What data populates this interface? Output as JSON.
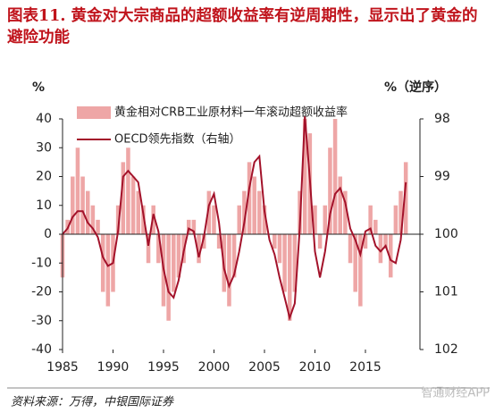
{
  "chart_data": {
    "type": "bar-line",
    "title": "图表11. 黄金对大宗商品的超额收益率有逆周期性，显示出了黄金的避险功能",
    "y_label": "%",
    "y2_label": "%（逆序）",
    "source": "资料来源：万得，中银国际证券",
    "watermark": "智通财经APP",
    "x": [
      1985,
      1985.5,
      1986,
      1986.5,
      1987,
      1987.5,
      1988,
      1988.5,
      1989,
      1989.5,
      1990,
      1990.5,
      1991,
      1991.5,
      1992,
      1992.5,
      1993,
      1993.5,
      1994,
      1994.5,
      1995,
      1995.5,
      1996,
      1996.5,
      1997,
      1997.5,
      1998,
      1998.5,
      1999,
      1999.5,
      2000,
      2000.5,
      2001,
      2001.5,
      2002,
      2002.5,
      2003,
      2003.5,
      2004,
      2004.5,
      2005,
      2005.5,
      2006,
      2006.5,
      2007,
      2007.5,
      2008,
      2008.5,
      2009,
      2009.5,
      2010,
      2010.5,
      2011,
      2011.5,
      2012,
      2012.5,
      2013,
      2013.5,
      2014,
      2014.5,
      2015,
      2015.5,
      2016,
      2016.5,
      2017,
      2017.5,
      2018,
      2018.5,
      2019
    ],
    "series": [
      {
        "name": "黄金相对CRB工业原材料一年滚动超额收益率",
        "kind": "bar",
        "color": "#eea6a6",
        "values": [
          -15,
          5,
          20,
          30,
          20,
          15,
          10,
          5,
          -20,
          -25,
          -20,
          10,
          25,
          30,
          20,
          15,
          10,
          -10,
          10,
          -10,
          -25,
          -30,
          -20,
          -15,
          -10,
          5,
          5,
          -10,
          -5,
          15,
          10,
          -5,
          -20,
          -25,
          -15,
          10,
          15,
          25,
          20,
          15,
          10,
          0,
          -5,
          -10,
          -20,
          -30,
          -20,
          15,
          40,
          35,
          10,
          -5,
          10,
          30,
          40,
          20,
          15,
          -10,
          -20,
          -25,
          -5,
          10,
          5,
          -10,
          -5,
          -15,
          10,
          15,
          25
        ]
      },
      {
        "name": "OECD领先指数（右轴）",
        "kind": "line",
        "axis": "y2",
        "color": "#a3122a",
        "values": [
          100.0,
          99.9,
          99.7,
          99.6,
          99.6,
          99.8,
          99.9,
          100.05,
          100.4,
          100.55,
          100.5,
          99.95,
          99.0,
          98.9,
          99.0,
          99.1,
          99.65,
          100.2,
          99.65,
          99.95,
          100.6,
          101.0,
          101.1,
          100.8,
          100.3,
          99.9,
          99.95,
          100.4,
          100.05,
          99.5,
          99.3,
          99.8,
          100.6,
          100.9,
          100.7,
          100.3,
          99.8,
          99.2,
          98.75,
          98.65,
          99.6,
          100.1,
          100.35,
          100.75,
          101.1,
          101.45,
          101.2,
          99.9,
          97.95,
          99.05,
          100.3,
          100.75,
          100.3,
          99.65,
          99.3,
          99.2,
          99.45,
          99.9,
          100.1,
          100.35,
          99.95,
          99.9,
          100.2,
          100.3,
          100.2,
          100.45,
          100.5,
          100.1,
          99.1
        ]
      }
    ],
    "xlim": [
      1985,
      2020.4
    ],
    "xticks": [
      1985,
      1990,
      1995,
      2000,
      2005,
      2010,
      2015
    ],
    "ylim": [
      -40,
      40
    ],
    "yticks": [
      -40,
      -30,
      -20,
      -10,
      0,
      10,
      20,
      30,
      40
    ],
    "y2lim": [
      98,
      102
    ],
    "y2ticks": [
      98,
      99,
      100,
      101,
      102
    ],
    "y2_inverted": true,
    "legend": "upper-left"
  }
}
